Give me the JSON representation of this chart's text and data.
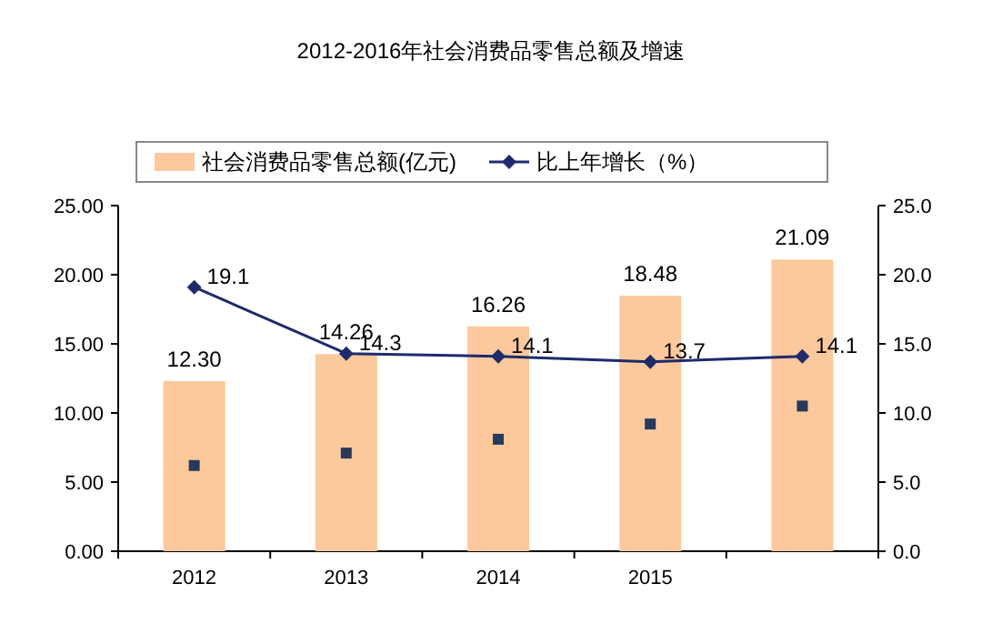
{
  "chart_data": {
    "type": "bar",
    "title": "2012-2016年社会消费品零售总额及增速",
    "categories": [
      "2012",
      "2013",
      "2014",
      "2015",
      null
    ],
    "series": [
      {
        "name": "社会消费品零售总额(亿元)",
        "color": "#fbc99b",
        "values": [
          12.3,
          14.26,
          16.26,
          18.48,
          21.09
        ],
        "value_labels": [
          "12.30",
          "14.26",
          "16.26",
          "18.48",
          "21.09"
        ]
      },
      {
        "name": "比上年增长（%）",
        "type": "line",
        "axis": "y2",
        "color": "#1f2a6e",
        "marker": "diamond",
        "values": [
          19.1,
          14.3,
          14.1,
          13.7,
          14.1
        ],
        "value_labels": [
          "19.1",
          "14.3",
          "14.1",
          "13.7",
          "14.1"
        ]
      },
      {
        "type": "scatter",
        "color": "#253a5c",
        "marker": "square",
        "values": [
          6.2,
          7.1,
          8.1,
          9.2,
          10.5
        ]
      }
    ],
    "ylim": [
      0,
      25
    ],
    "yticks": [
      {
        "value": 0,
        "label": "0.00"
      },
      {
        "value": 5,
        "label": "5.00"
      },
      {
        "value": 10,
        "label": "10.00"
      },
      {
        "value": 15,
        "label": "15.00"
      },
      {
        "value": 20,
        "label": "20.00"
      },
      {
        "value": 25,
        "label": "25.00"
      }
    ],
    "y2lim": [
      0,
      25
    ],
    "y2ticks": [
      {
        "value": 0,
        "label": "0.0"
      },
      {
        "value": 5,
        "label": "5.0"
      },
      {
        "value": 10,
        "label": "10.0"
      },
      {
        "value": 15,
        "label": "15.0"
      },
      {
        "value": 20,
        "label": "20.0"
      },
      {
        "value": 25,
        "label": "25.0"
      }
    ],
    "legend": "top",
    "grid": false
  }
}
